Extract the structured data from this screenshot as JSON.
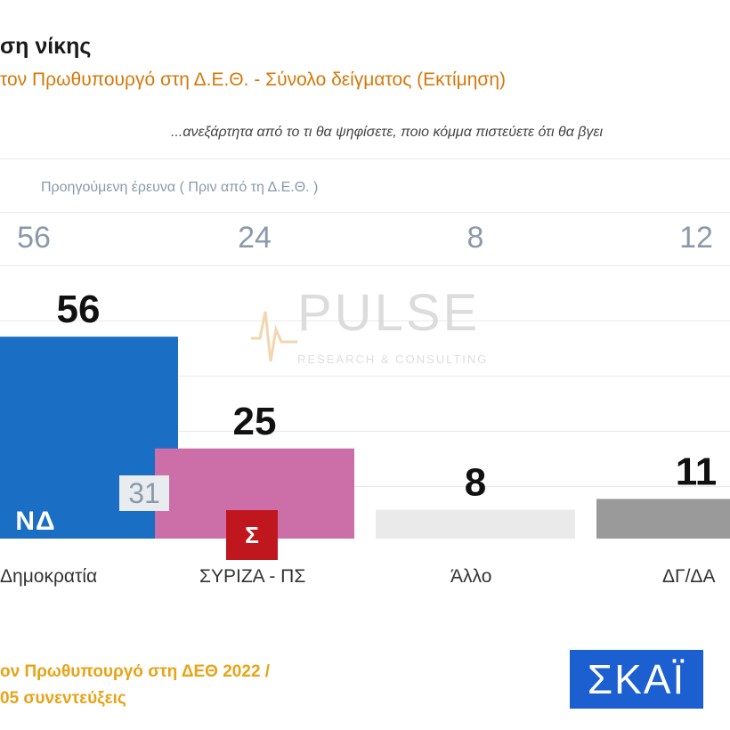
{
  "header": {
    "title": "ση νίκης",
    "subtitle": "τον Πρωθυπουργό στη Δ.Ε.Θ.  -  Σύνολο δείγματος   (Εκτίμηση)",
    "question": "...ανεξάρτητα από το τι θα ψηφίσετε, ποιο κόμμα πιστεύετε ότι θα βγει"
  },
  "previous": {
    "label": "Προηγούμενη έρευνα  (  Πριν από τη Δ.Ε.Θ. )",
    "values": [
      "56",
      "24",
      "8",
      "12"
    ]
  },
  "watermark": {
    "brand": "PULSE",
    "tagline": "RESEARCH & CONSULTING"
  },
  "logos": {
    "nd": "ΝΔ",
    "syriza": "Σ",
    "skai": "ΣΚΑΪ"
  },
  "inset_value": "31",
  "footer": {
    "line1": "ον Πρωθυπουργό στη ΔΕΘ  2022   /",
    "line2": "05 συνεντεύξεις"
  },
  "colors": {
    "nd": "#1a6fc4",
    "syriza": "#cc6fa8",
    "other": "#eaeaea",
    "dg": "#9a9a9a",
    "accent": "#d4780a"
  },
  "chart_data": {
    "type": "bar",
    "title": "",
    "categories": [
      "Δημοκρατία",
      "ΣΥΡΙΖΑ - ΠΣ",
      "Άλλο",
      "ΔΓ/ΔΑ"
    ],
    "values": [
      56,
      25,
      8,
      11
    ],
    "previous_values": [
      56,
      24,
      8,
      12
    ],
    "value_labels": [
      "56",
      "25",
      "8",
      "11"
    ],
    "colors": [
      "#1a6fc4",
      "#cc6fa8",
      "#eaeaea",
      "#9a9a9a"
    ],
    "ylim": [
      0,
      100
    ],
    "xlabel": "",
    "ylabel": "",
    "grid": true
  }
}
